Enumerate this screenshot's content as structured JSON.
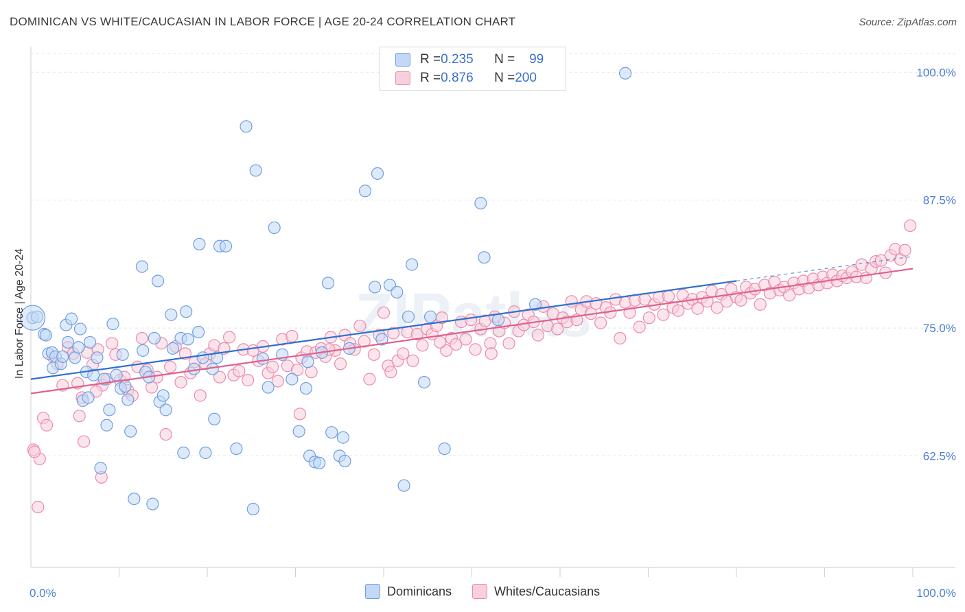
{
  "title": "DOMINICAN VS WHITE/CAUCASIAN IN LABOR FORCE | AGE 20-24 CORRELATION CHART",
  "source": "Source: ZipAtlas.com",
  "watermark": "ZIPatlas",
  "legend": {
    "rows": [
      {
        "r_label": "R = ",
        "r_value": "0.235",
        "n_label": "N = ",
        "n_value": "99",
        "color": "#a8c8f0"
      },
      {
        "r_label": "R = ",
        "r_value": "0.876",
        "n_label": "N = ",
        "n_value": "200",
        "color": "#f5b8cc"
      }
    ]
  },
  "bottom_legend": [
    "Dominicans",
    "Whites/Caucasians"
  ],
  "chart_data": {
    "type": "scatter",
    "ylabel": "In Labor Force | Age 20-24",
    "xlim": [
      0,
      100
    ],
    "ylim": [
      51.6,
      102.5
    ],
    "y_ticks": [
      {
        "value": 62.5,
        "label": "62.5%"
      },
      {
        "value": 75.0,
        "label": "75.0%"
      },
      {
        "value": 87.5,
        "label": "87.5%"
      },
      {
        "value": 100.0,
        "label": "100.0%"
      }
    ],
    "x_tick_labels": {
      "left": "0.0%",
      "right": "100.0%"
    },
    "grid": true,
    "series": [
      {
        "name": "Dominicans",
        "color": "#6e9fe0",
        "fill": "#c2d8f5",
        "line_color": "#2f6fd0",
        "trend": {
          "x0": 0,
          "y0": 70.0,
          "x1": 80,
          "y1": 79.6,
          "dash_to_x": 100,
          "dash_to_y": 82.0
        },
        "points": [
          [
            0.2,
            76.0
          ],
          [
            0.7,
            76.1
          ],
          [
            1.5,
            74.4
          ],
          [
            1.7,
            74.3
          ],
          [
            2.0,
            72.5
          ],
          [
            2.4,
            72.6
          ],
          [
            2.5,
            71.1
          ],
          [
            2.8,
            72.2
          ],
          [
            3.4,
            71.5
          ],
          [
            3.6,
            72.2
          ],
          [
            4.0,
            75.3
          ],
          [
            4.2,
            73.6
          ],
          [
            4.6,
            75.9
          ],
          [
            5.0,
            72.1
          ],
          [
            5.4,
            73.1
          ],
          [
            5.6,
            74.9
          ],
          [
            5.9,
            67.9
          ],
          [
            6.3,
            70.7
          ],
          [
            6.5,
            68.2
          ],
          [
            6.7,
            73.6
          ],
          [
            7.1,
            70.4
          ],
          [
            7.5,
            72.1
          ],
          [
            7.9,
            61.3
          ],
          [
            8.3,
            70.0
          ],
          [
            8.6,
            65.5
          ],
          [
            8.9,
            67.0
          ],
          [
            9.3,
            75.4
          ],
          [
            9.7,
            70.4
          ],
          [
            10.2,
            69.1
          ],
          [
            10.4,
            72.4
          ],
          [
            10.7,
            69.3
          ],
          [
            11.0,
            68.0
          ],
          [
            11.3,
            64.9
          ],
          [
            11.7,
            58.3
          ],
          [
            12.6,
            81.0
          ],
          [
            12.7,
            72.8
          ],
          [
            13.0,
            70.7
          ],
          [
            13.4,
            70.2
          ],
          [
            13.8,
            57.8
          ],
          [
            14.0,
            74.0
          ],
          [
            14.4,
            79.6
          ],
          [
            14.6,
            67.8
          ],
          [
            15.0,
            68.4
          ],
          [
            15.3,
            67.0
          ],
          [
            15.9,
            76.3
          ],
          [
            16.1,
            73.0
          ],
          [
            17.0,
            74.0
          ],
          [
            17.3,
            62.8
          ],
          [
            17.6,
            76.6
          ],
          [
            17.8,
            73.9
          ],
          [
            18.5,
            71.0
          ],
          [
            19.0,
            74.6
          ],
          [
            19.1,
            83.2
          ],
          [
            19.5,
            72.1
          ],
          [
            19.8,
            62.8
          ],
          [
            20.6,
            71.0
          ],
          [
            20.8,
            66.1
          ],
          [
            21.1,
            72.1
          ],
          [
            21.4,
            83.0
          ],
          [
            22.1,
            83.0
          ],
          [
            23.3,
            63.2
          ],
          [
            24.4,
            94.7
          ],
          [
            25.2,
            57.3
          ],
          [
            25.5,
            90.4
          ],
          [
            26.3,
            72.0
          ],
          [
            26.9,
            69.2
          ],
          [
            27.6,
            84.8
          ],
          [
            28.5,
            72.4
          ],
          [
            29.6,
            70.0
          ],
          [
            30.4,
            64.9
          ],
          [
            31.2,
            69.1
          ],
          [
            31.4,
            71.7
          ],
          [
            31.6,
            62.5
          ],
          [
            32.2,
            61.9
          ],
          [
            32.7,
            61.8
          ],
          [
            33.0,
            72.6
          ],
          [
            33.7,
            79.4
          ],
          [
            34.1,
            64.8
          ],
          [
            35.0,
            62.5
          ],
          [
            35.4,
            64.3
          ],
          [
            35.6,
            62.0
          ],
          [
            36.1,
            73.0
          ],
          [
            37.9,
            88.4
          ],
          [
            39.0,
            79.0
          ],
          [
            39.3,
            90.1
          ],
          [
            39.8,
            73.9
          ],
          [
            40.7,
            79.2
          ],
          [
            41.5,
            78.5
          ],
          [
            42.3,
            59.6
          ],
          [
            42.8,
            76.1
          ],
          [
            43.2,
            81.2
          ],
          [
            44.6,
            69.7
          ],
          [
            45.3,
            76.1
          ],
          [
            46.9,
            63.2
          ],
          [
            51.0,
            87.2
          ],
          [
            51.4,
            81.9
          ],
          [
            53.0,
            75.8
          ],
          [
            57.2,
            77.3
          ],
          [
            67.4,
            99.9
          ]
        ]
      },
      {
        "name": "Whites/Caucasians",
        "color": "#ec8aaa",
        "fill": "#f8cfdc",
        "line_color": "#e0608c",
        "trend": {
          "x0": 0,
          "y0": 68.6,
          "x1": 100,
          "y1": 80.8
        },
        "points": [
          [
            0.3,
            63.1
          ],
          [
            0.8,
            57.5
          ],
          [
            1.0,
            62.2
          ],
          [
            1.4,
            66.2
          ],
          [
            1.8,
            65.5
          ],
          [
            2.5,
            72.2
          ],
          [
            3.0,
            71.5
          ],
          [
            3.6,
            69.4
          ],
          [
            4.2,
            73.1
          ],
          [
            4.8,
            72.5
          ],
          [
            5.3,
            69.6
          ],
          [
            5.8,
            68.2
          ],
          [
            6.4,
            72.6
          ],
          [
            7.0,
            71.4
          ],
          [
            7.6,
            72.9
          ],
          [
            8.1,
            69.4
          ],
          [
            8.6,
            70.0
          ],
          [
            9.2,
            73.5
          ],
          [
            9.6,
            72.4
          ],
          [
            10.1,
            69.9
          ],
          [
            10.6,
            70.2
          ],
          [
            11.0,
            68.9
          ],
          [
            11.5,
            68.4
          ],
          [
            12.1,
            71.2
          ],
          [
            12.6,
            74.0
          ],
          [
            13.2,
            70.9
          ],
          [
            13.7,
            69.2
          ],
          [
            14.3,
            70.2
          ],
          [
            14.8,
            73.5
          ],
          [
            15.3,
            64.6
          ],
          [
            15.8,
            71.2
          ],
          [
            16.4,
            73.2
          ],
          [
            17.0,
            69.7
          ],
          [
            17.5,
            72.5
          ],
          [
            18.1,
            70.6
          ],
          [
            18.6,
            71.7
          ],
          [
            19.2,
            68.4
          ],
          [
            19.8,
            71.5
          ],
          [
            20.3,
            72.5
          ],
          [
            20.8,
            73.3
          ],
          [
            21.4,
            70.2
          ],
          [
            21.9,
            73.0
          ],
          [
            22.5,
            74.1
          ],
          [
            23.0,
            70.4
          ],
          [
            23.6,
            70.8
          ],
          [
            24.1,
            72.9
          ],
          [
            24.6,
            69.9
          ],
          [
            25.2,
            72.8
          ],
          [
            25.8,
            71.8
          ],
          [
            26.3,
            73.2
          ],
          [
            26.9,
            70.6
          ],
          [
            27.4,
            71.2
          ],
          [
            28.0,
            69.8
          ],
          [
            28.5,
            73.9
          ],
          [
            29.1,
            71.3
          ],
          [
            29.6,
            74.2
          ],
          [
            30.2,
            70.9
          ],
          [
            30.7,
            72.1
          ],
          [
            31.3,
            72.7
          ],
          [
            31.8,
            70.7
          ],
          [
            32.3,
            72.6
          ],
          [
            32.9,
            73.0
          ],
          [
            33.4,
            72.2
          ],
          [
            34.0,
            74.1
          ],
          [
            34.5,
            72.8
          ],
          [
            35.1,
            71.5
          ],
          [
            35.6,
            74.3
          ],
          [
            36.2,
            73.5
          ],
          [
            36.7,
            72.9
          ],
          [
            37.3,
            75.2
          ],
          [
            37.8,
            73.7
          ],
          [
            38.4,
            70.0
          ],
          [
            38.9,
            72.4
          ],
          [
            39.5,
            74.3
          ],
          [
            40.0,
            76.5
          ],
          [
            40.5,
            71.3
          ],
          [
            41.1,
            74.5
          ],
          [
            41.6,
            71.8
          ],
          [
            42.2,
            72.5
          ],
          [
            42.7,
            74.6
          ],
          [
            43.3,
            71.8
          ],
          [
            43.8,
            74.4
          ],
          [
            44.4,
            73.3
          ],
          [
            44.9,
            74.9
          ],
          [
            45.5,
            74.4
          ],
          [
            46.0,
            75.2
          ],
          [
            46.6,
            76.0
          ],
          [
            47.1,
            72.8
          ],
          [
            47.7,
            74.0
          ],
          [
            48.2,
            73.4
          ],
          [
            48.8,
            75.6
          ],
          [
            49.3,
            73.9
          ],
          [
            49.9,
            75.8
          ],
          [
            50.4,
            72.9
          ],
          [
            51.0,
            74.9
          ],
          [
            51.5,
            75.7
          ],
          [
            52.1,
            73.5
          ],
          [
            52.6,
            76.1
          ],
          [
            53.1,
            74.7
          ],
          [
            53.7,
            75.5
          ],
          [
            54.2,
            73.5
          ],
          [
            54.8,
            76.6
          ],
          [
            55.3,
            74.7
          ],
          [
            55.9,
            75.3
          ],
          [
            56.4,
            76.3
          ],
          [
            57.0,
            75.6
          ],
          [
            57.5,
            74.3
          ],
          [
            58.1,
            77.1
          ],
          [
            58.6,
            75.2
          ],
          [
            59.2,
            76.4
          ],
          [
            59.7,
            74.9
          ],
          [
            60.3,
            76.0
          ],
          [
            60.8,
            75.6
          ],
          [
            61.3,
            77.6
          ],
          [
            61.9,
            75.8
          ],
          [
            62.4,
            76.8
          ],
          [
            63.0,
            77.6
          ],
          [
            63.5,
            76.4
          ],
          [
            64.1,
            77.4
          ],
          [
            64.6,
            75.5
          ],
          [
            65.2,
            77.0
          ],
          [
            65.7,
            76.5
          ],
          [
            66.3,
            77.8
          ],
          [
            66.8,
            74.0
          ],
          [
            67.4,
            77.5
          ],
          [
            67.9,
            76.5
          ],
          [
            68.5,
            77.7
          ],
          [
            69.0,
            75.1
          ],
          [
            69.6,
            77.8
          ],
          [
            70.1,
            76.0
          ],
          [
            70.7,
            77.3
          ],
          [
            71.2,
            78.0
          ],
          [
            71.7,
            76.3
          ],
          [
            72.3,
            78.1
          ],
          [
            72.8,
            77.0
          ],
          [
            73.4,
            76.7
          ],
          [
            73.9,
            78.2
          ],
          [
            74.5,
            77.4
          ],
          [
            75.0,
            77.8
          ],
          [
            75.6,
            76.9
          ],
          [
            76.1,
            78.0
          ],
          [
            76.7,
            77.6
          ],
          [
            77.2,
            78.6
          ],
          [
            77.8,
            77.0
          ],
          [
            78.3,
            78.3
          ],
          [
            78.9,
            77.6
          ],
          [
            79.4,
            78.8
          ],
          [
            80.0,
            78.0
          ],
          [
            80.5,
            77.7
          ],
          [
            81.1,
            79.0
          ],
          [
            81.6,
            78.4
          ],
          [
            82.1,
            78.8
          ],
          [
            82.7,
            77.3
          ],
          [
            83.2,
            79.2
          ],
          [
            83.8,
            78.4
          ],
          [
            84.3,
            79.5
          ],
          [
            84.9,
            78.7
          ],
          [
            85.4,
            79.0
          ],
          [
            86.0,
            78.2
          ],
          [
            86.5,
            79.4
          ],
          [
            87.1,
            78.8
          ],
          [
            87.6,
            79.6
          ],
          [
            88.2,
            78.9
          ],
          [
            88.7,
            79.8
          ],
          [
            89.3,
            79.2
          ],
          [
            89.8,
            80.0
          ],
          [
            90.3,
            79.4
          ],
          [
            90.9,
            80.2
          ],
          [
            91.4,
            79.6
          ],
          [
            92.0,
            80.1
          ],
          [
            92.5,
            79.9
          ],
          [
            93.1,
            80.5
          ],
          [
            93.6,
            80.0
          ],
          [
            94.2,
            81.2
          ],
          [
            94.7,
            79.9
          ],
          [
            95.3,
            80.8
          ],
          [
            95.8,
            81.5
          ],
          [
            96.4,
            81.6
          ],
          [
            96.9,
            80.4
          ],
          [
            97.5,
            82.1
          ],
          [
            98.0,
            82.7
          ],
          [
            98.6,
            81.7
          ],
          [
            99.1,
            82.6
          ],
          [
            99.7,
            85.0
          ],
          [
            0.4,
            62.9
          ],
          [
            5.5,
            66.4
          ],
          [
            6.0,
            63.9
          ],
          [
            7.4,
            68.8
          ],
          [
            8.0,
            60.4
          ],
          [
            30.5,
            66.6
          ],
          [
            33.8,
            72.9
          ],
          [
            40.8,
            70.7
          ],
          [
            46.4,
            73.6
          ],
          [
            52.2,
            72.5
          ]
        ]
      }
    ]
  }
}
